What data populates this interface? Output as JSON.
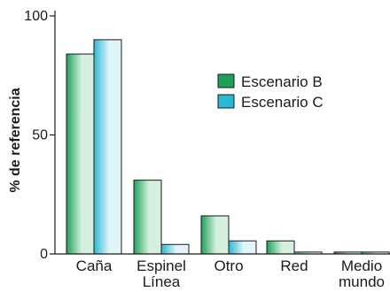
{
  "chart_data": {
    "type": "bar",
    "ylabel": "% de referencia",
    "xlabel": "",
    "ylim": [
      0,
      100
    ],
    "yticks": [
      0,
      50,
      100
    ],
    "categories": [
      [
        "Caña"
      ],
      [
        "Espinel",
        "Línea"
      ],
      [
        "Otro"
      ],
      [
        "Red"
      ],
      [
        "Medio",
        "mundo"
      ]
    ],
    "series": [
      {
        "name": "Escenario B",
        "values": [
          84,
          31,
          16,
          5.5,
          0.8
        ],
        "color": "#1fa05a",
        "highlight": "#d6f0df"
      },
      {
        "name": "Escenario C",
        "values": [
          90,
          4,
          5.5,
          0.8,
          0.8
        ],
        "color": "#2bb8d4",
        "highlight": "#dff5fa"
      }
    ],
    "legend_position": "top-right",
    "grid": false
  }
}
